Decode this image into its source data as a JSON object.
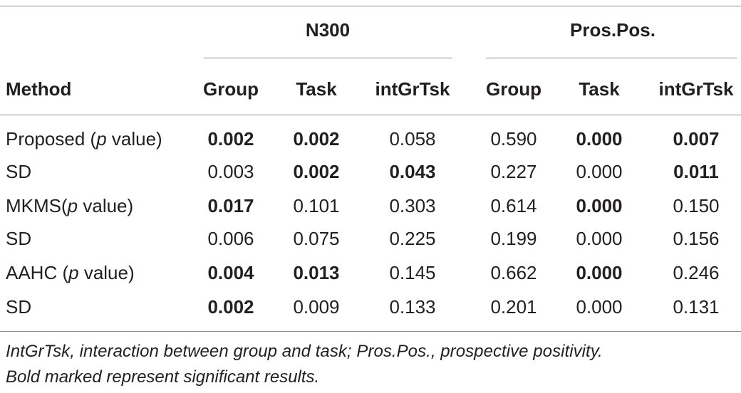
{
  "table": {
    "group_headers": {
      "n300": "N300",
      "prospos": "Pros.Pos."
    },
    "column_headers": [
      "Method",
      "Group",
      "Task",
      "intGrTsk",
      "Group",
      "Task",
      "intGrTsk"
    ],
    "rows": [
      {
        "method_pre": "Proposed (",
        "method_ital": "p",
        "method_post": " value)",
        "cells": [
          "0.002",
          "0.002",
          "0.058",
          "0.590",
          "0.000",
          "0.007"
        ],
        "bold": [
          true,
          true,
          false,
          false,
          true,
          true
        ]
      },
      {
        "method_pre": "SD",
        "method_ital": "",
        "method_post": "",
        "cells": [
          "0.003",
          "0.002",
          "0.043",
          "0.227",
          "0.000",
          "0.011"
        ],
        "bold": [
          false,
          true,
          true,
          false,
          false,
          true
        ]
      },
      {
        "method_pre": "MKMS(",
        "method_ital": "p",
        "method_post": " value)",
        "cells": [
          "0.017",
          "0.101",
          "0.303",
          "0.614",
          "0.000",
          "0.150"
        ],
        "bold": [
          true,
          false,
          false,
          false,
          true,
          false
        ]
      },
      {
        "method_pre": "SD",
        "method_ital": "",
        "method_post": "",
        "cells": [
          "0.006",
          "0.075",
          "0.225",
          "0.199",
          "0.000",
          "0.156"
        ],
        "bold": [
          false,
          false,
          false,
          false,
          false,
          false
        ]
      },
      {
        "method_pre": "AAHC (",
        "method_ital": "p",
        "method_post": " value)",
        "cells": [
          "0.004",
          "0.013",
          "0.145",
          "0.662",
          "0.000",
          "0.246"
        ],
        "bold": [
          true,
          true,
          false,
          false,
          true,
          false
        ]
      },
      {
        "method_pre": "SD",
        "method_ital": "",
        "method_post": "",
        "cells": [
          "0.002",
          "0.009",
          "0.133",
          "0.201",
          "0.000",
          "0.131"
        ],
        "bold": [
          true,
          false,
          false,
          false,
          false,
          false
        ]
      }
    ]
  },
  "footnote": {
    "line1": "IntGrTsk, interaction between group and task; Pros.Pos., prospective positivity.",
    "line2": "Bold marked represent significant results."
  }
}
